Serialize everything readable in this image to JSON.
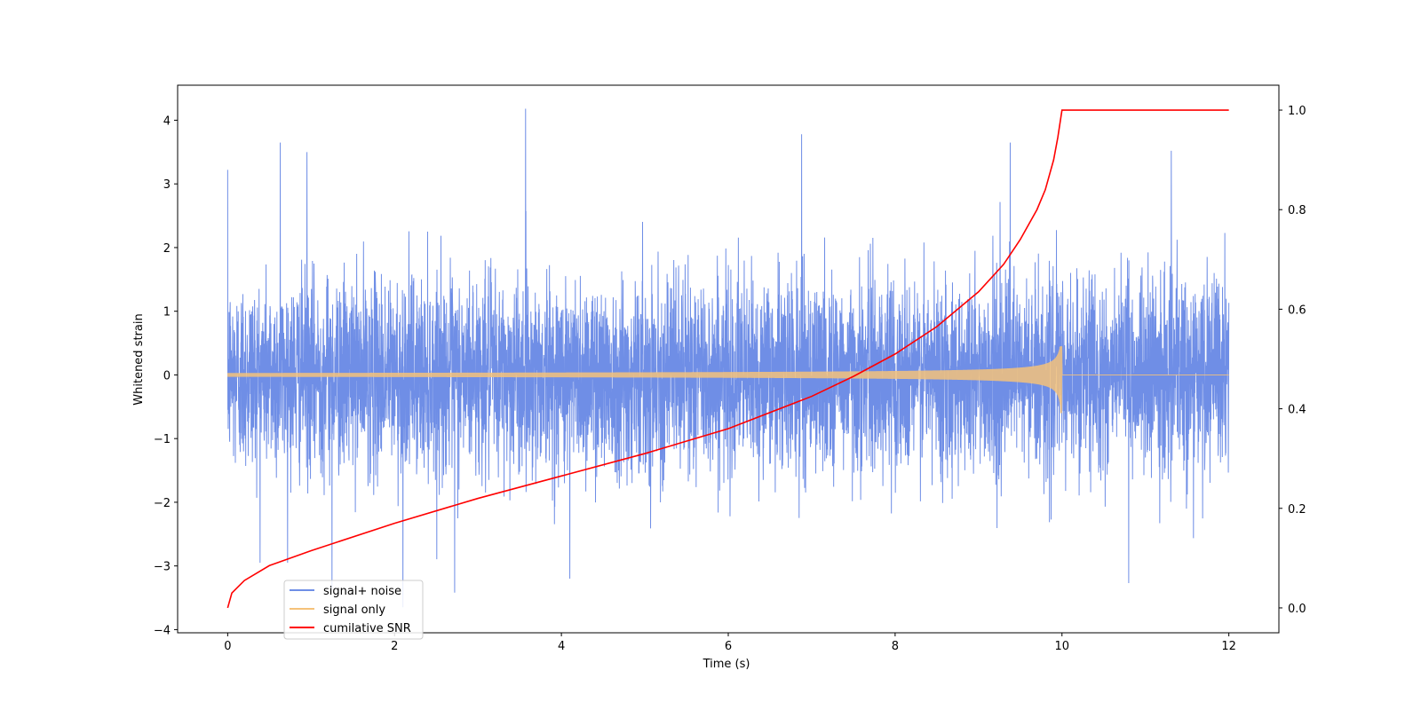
{
  "chart_data": {
    "type": "line",
    "title": "",
    "xlabel": "Time (s)",
    "ylabel": "Whitened strain",
    "y2label": "",
    "xlim": [
      -0.6,
      12.6
    ],
    "ylim": [
      -4.05,
      4.55
    ],
    "y2lim": [
      -0.05,
      1.05
    ],
    "xticks": [
      0,
      2,
      4,
      6,
      8,
      10,
      12
    ],
    "yticks": [
      -4,
      -3,
      -2,
      -1,
      0,
      1,
      2,
      3,
      4
    ],
    "y2ticks": [
      0.0,
      0.2,
      0.4,
      0.6,
      0.8,
      1.0
    ],
    "y2tick_labels": [
      "0.0",
      "0.2",
      "0.4",
      "0.6",
      "0.8",
      "1.0"
    ],
    "grid": false,
    "legend": {
      "position": "lower-left",
      "entries": [
        "signal+ noise",
        "signal only",
        "cumilative SNR"
      ]
    },
    "series": [
      {
        "name": "signal+ noise",
        "axis": "left",
        "color": "#6f8ee6",
        "kind": "noise",
        "x_range": [
          0,
          12
        ],
        "envelope": [
          -3.3,
          4.18
        ],
        "peaks": [
          {
            "x": 3.57,
            "y": 4.18
          },
          {
            "x": 6.88,
            "y": 3.78
          },
          {
            "x": 0.63,
            "y": 3.65
          },
          {
            "x": 9.38,
            "y": 3.65
          },
          {
            "x": 0.0,
            "y": 3.22
          },
          {
            "x": 0.95,
            "y": 3.5
          },
          {
            "x": 11.31,
            "y": 3.52
          },
          {
            "x": 2.1,
            "y": -3.65
          },
          {
            "x": 1.25,
            "y": -3.35
          },
          {
            "x": 2.72,
            "y": -3.42
          },
          {
            "x": 10.8,
            "y": -3.27
          },
          {
            "x": 4.1,
            "y": -3.2
          }
        ]
      },
      {
        "name": "signal only",
        "axis": "left",
        "color": "#f5c27a",
        "kind": "chirp",
        "x_range": [
          0,
          12
        ],
        "merger_time": 10.0,
        "peak_amplitude": [
          0.45,
          -0.6
        ],
        "amplitude_at_start": 0.03
      },
      {
        "name": "cumilative SNR",
        "axis": "right",
        "color": "#ff0000",
        "kind": "line",
        "x": [
          0,
          0.05,
          0.2,
          0.5,
          1.0,
          2.0,
          3.0,
          4.0,
          5.0,
          6.0,
          7.0,
          7.5,
          8.0,
          8.5,
          9.0,
          9.3,
          9.5,
          9.7,
          9.8,
          9.9,
          9.95,
          10.0,
          10.05,
          11.0,
          12.0
        ],
        "y": [
          0.0,
          0.03,
          0.055,
          0.085,
          0.115,
          0.17,
          0.22,
          0.265,
          0.31,
          0.36,
          0.425,
          0.465,
          0.51,
          0.565,
          0.635,
          0.69,
          0.74,
          0.8,
          0.84,
          0.9,
          0.945,
          1.0,
          1.0,
          1.0,
          1.0
        ]
      }
    ]
  }
}
